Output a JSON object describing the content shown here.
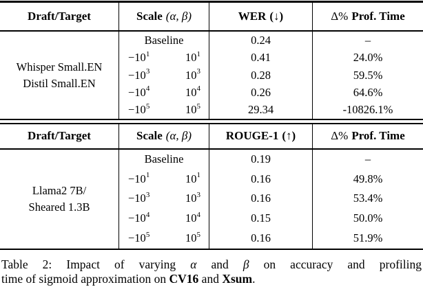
{
  "tables": [
    {
      "draft_target": [
        "Whisper Small.EN",
        "Distil Small.EN"
      ],
      "headers": {
        "draft": "Draft/Target",
        "scale_label": "Scale",
        "scale_math": "(α, β)",
        "metric_label": "WER",
        "metric_arrow": "(↓)",
        "delta_prefix": "Δ%",
        "delta_label": "Prof. Time"
      },
      "rows": [
        {
          "scale": "Baseline",
          "metric": "0.24",
          "delta": "–"
        },
        {
          "alpha": "−10",
          "alpha_exp": "1",
          "beta": "10",
          "beta_exp": "1",
          "metric": "0.41",
          "delta": "24.0%"
        },
        {
          "alpha": "−10",
          "alpha_exp": "3",
          "beta": "10",
          "beta_exp": "3",
          "metric": "0.28",
          "delta": "59.5%"
        },
        {
          "alpha": "−10",
          "alpha_exp": "4",
          "beta": "10",
          "beta_exp": "4",
          "metric": "0.26",
          "delta": "64.6%"
        },
        {
          "alpha": "−10",
          "alpha_exp": "5",
          "beta": "10",
          "beta_exp": "5",
          "metric": "29.34",
          "delta": "-10826.1%"
        }
      ]
    },
    {
      "draft_target": [
        "Llama2 7B/",
        "Sheared 1.3B"
      ],
      "headers": {
        "draft": "Draft/Target",
        "scale_label": "Scale",
        "scale_math": "(α, β)",
        "metric_label": "ROUGE-1",
        "metric_arrow": "(↑)",
        "delta_prefix": "Δ%",
        "delta_label": "Prof. Time"
      },
      "rows": [
        {
          "scale": "Baseline",
          "metric": "0.19",
          "delta": "–"
        },
        {
          "alpha": "−10",
          "alpha_exp": "1",
          "beta": "10",
          "beta_exp": "1",
          "metric": "0.16",
          "delta": "49.8%"
        },
        {
          "alpha": "−10",
          "alpha_exp": "3",
          "beta": "10",
          "beta_exp": "3",
          "metric": "0.16",
          "delta": "53.4%"
        },
        {
          "alpha": "−10",
          "alpha_exp": "4",
          "beta": "10",
          "beta_exp": "4",
          "metric": "0.15",
          "delta": "50.0%"
        },
        {
          "alpha": "−10",
          "alpha_exp": "5",
          "beta": "10",
          "beta_exp": "5",
          "metric": "0.16",
          "delta": "51.9%"
        }
      ]
    }
  ],
  "caption": {
    "l1a": "Table 2: Impact of varying ",
    "l1_alpha": "α",
    "l1b": " and ",
    "l1_beta": "β",
    "l1c": " on accuracy and profiling",
    "l2a": "time of sigmoid approximation on ",
    "l2_cv16": "CV16",
    "l2b": " and ",
    "l2_xsum": "Xsum",
    "l2c": "."
  }
}
